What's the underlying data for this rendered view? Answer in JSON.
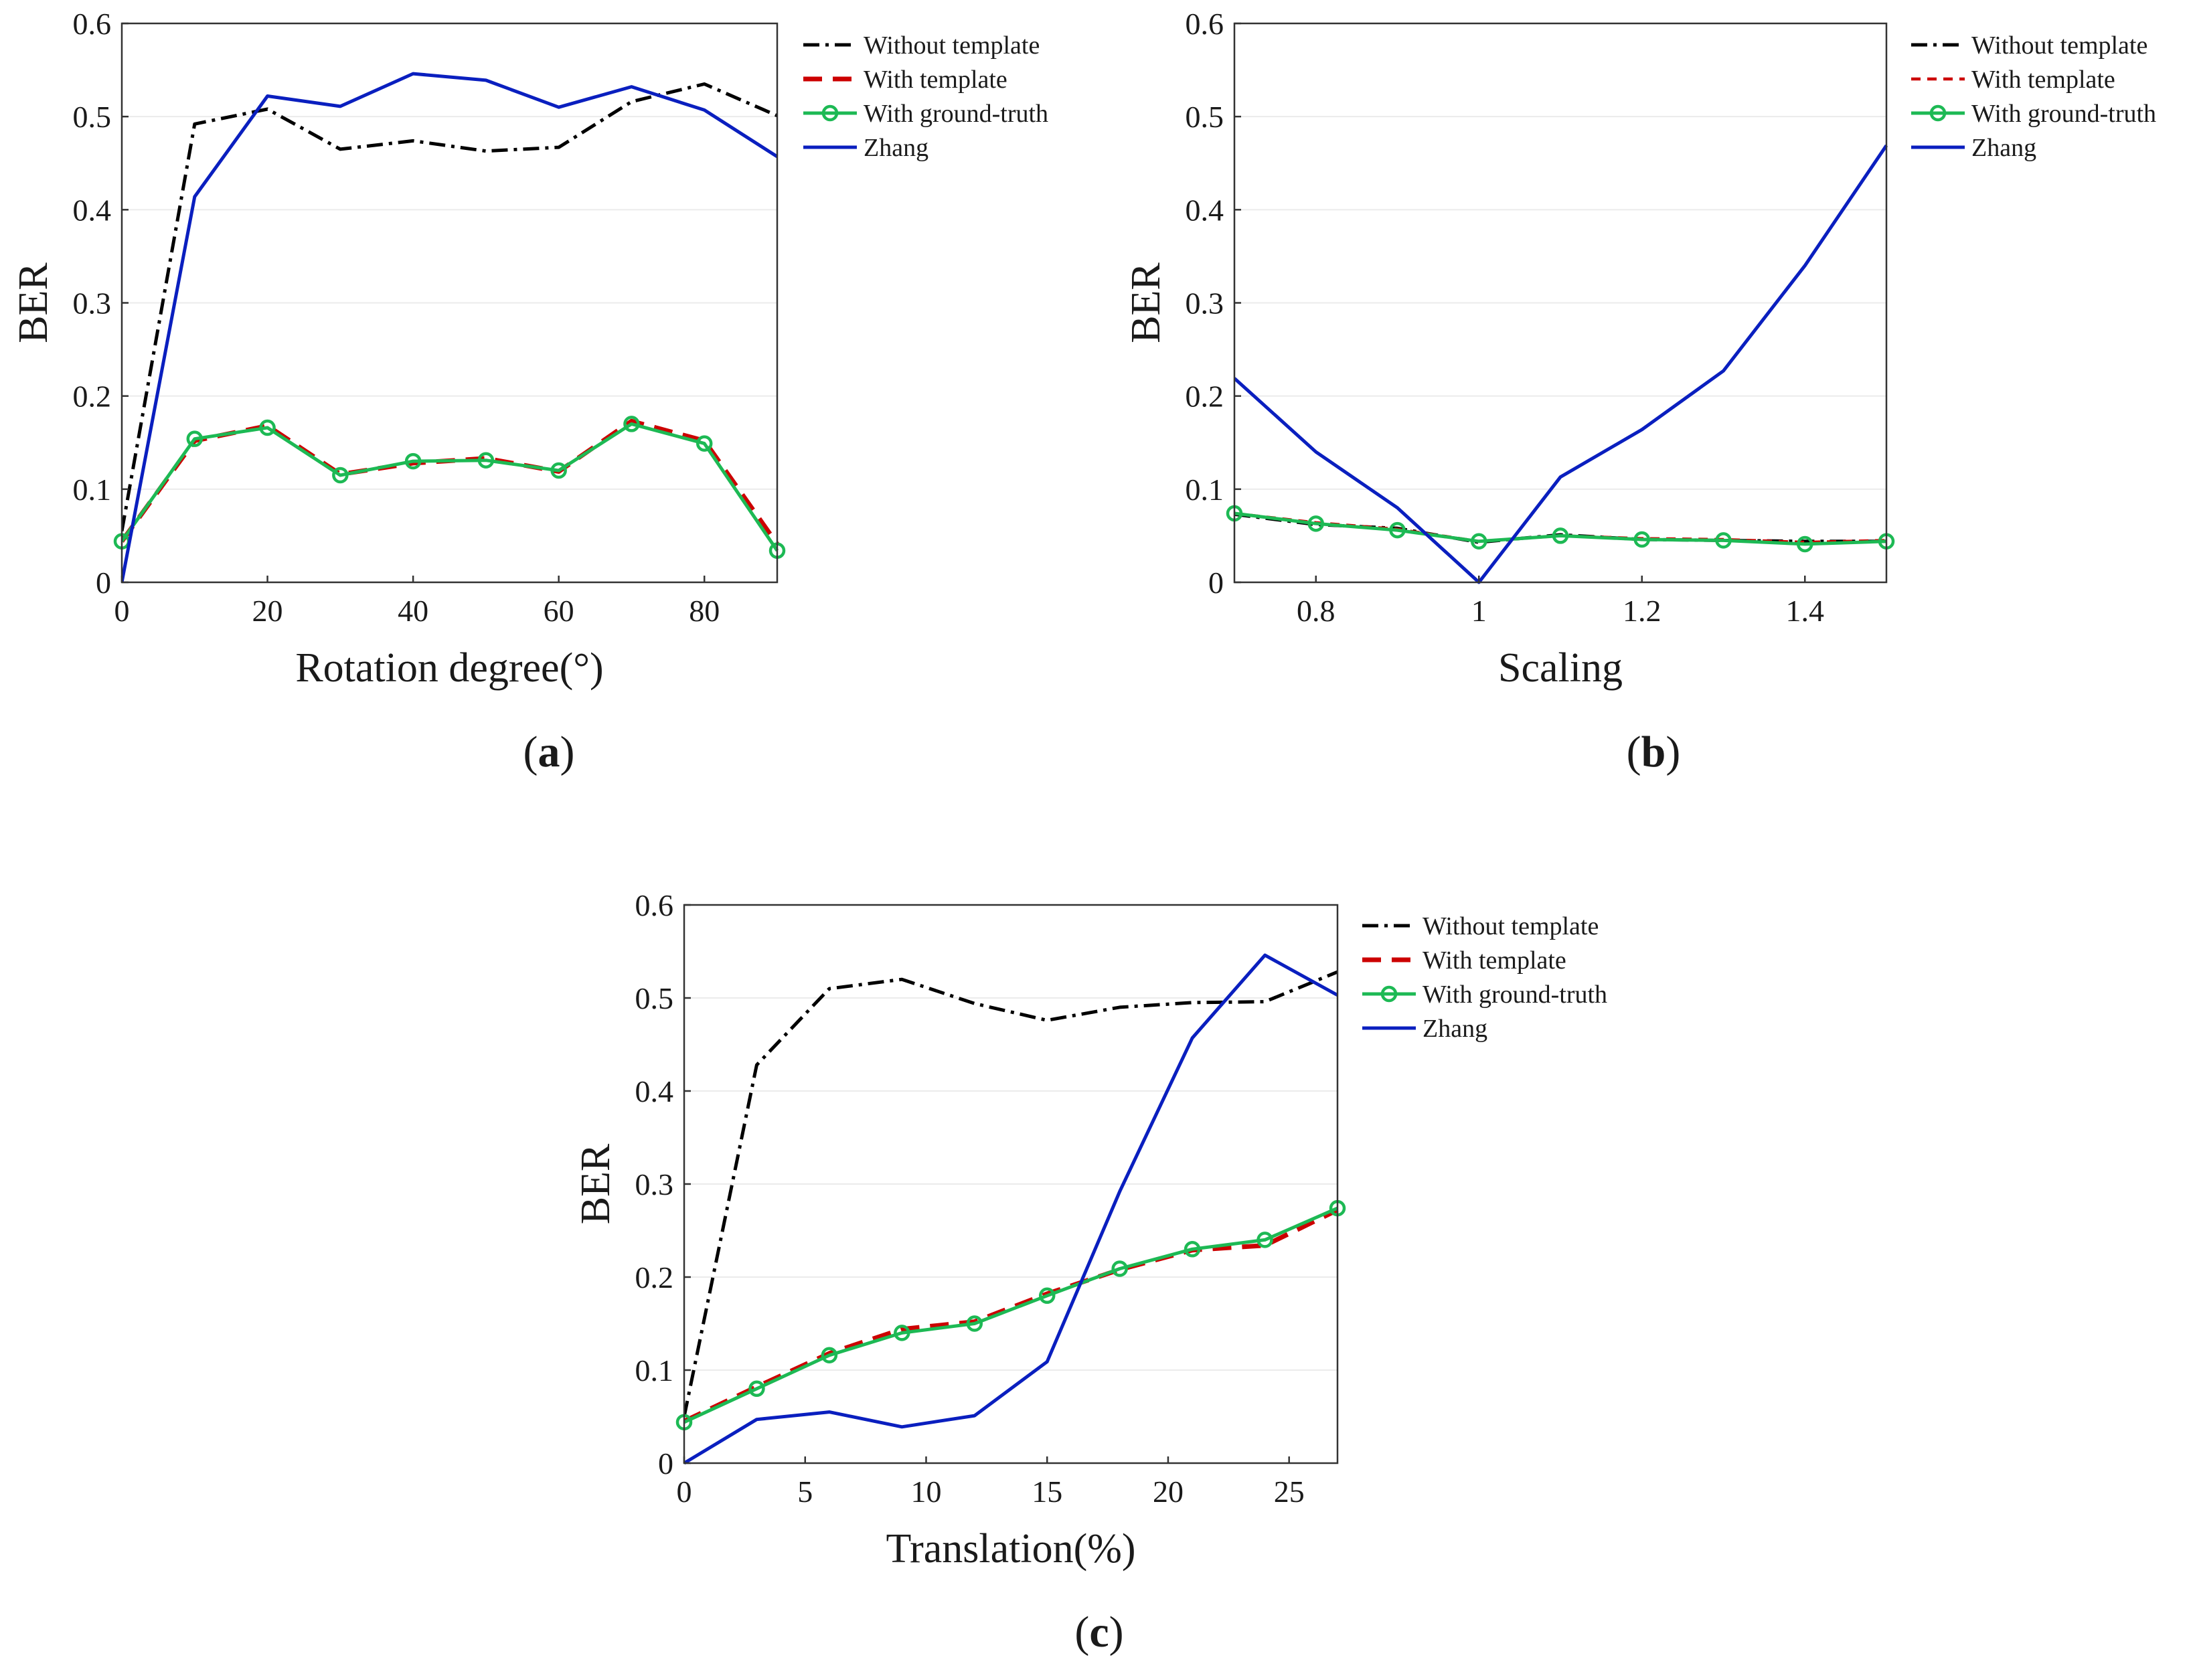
{
  "panels": [
    {
      "label": "a",
      "chart_data": {
        "type": "line",
        "xlabel": "Rotation degree(°)",
        "ylabel": "BER",
        "xlim": [
          0,
          90
        ],
        "ylim": [
          0,
          0.6
        ],
        "xticks": [
          0,
          20,
          40,
          60,
          80
        ],
        "yticks": [
          0,
          0.1,
          0.2,
          0.3,
          0.4,
          0.5,
          0.6
        ],
        "grid": "horizontal",
        "legend": "top-right-outside",
        "x": [
          0,
          10,
          20,
          30,
          40,
          50,
          60,
          70,
          80,
          90
        ],
        "series": [
          {
            "name": "Without template",
            "style": "dashdot",
            "color": "#000000",
            "values": [
              0.055,
              0.492,
              0.508,
              0.465,
              0.474,
              0.463,
              0.467,
              0.516,
              0.535,
              0.501
            ]
          },
          {
            "name": "With template",
            "style": "dashed",
            "color": "#cc0000",
            "values": [
              0.044,
              0.152,
              0.168,
              0.116,
              0.128,
              0.133,
              0.119,
              0.173,
              0.152,
              0.041
            ]
          },
          {
            "name": "With ground-truth",
            "style": "solid-marker",
            "color": "#1db954",
            "values": [
              0.044,
              0.154,
              0.166,
              0.115,
              0.13,
              0.131,
              0.12,
              0.17,
              0.149,
              0.034
            ]
          },
          {
            "name": "Zhang",
            "style": "solid",
            "color": "#0a1fbf",
            "values": [
              0.0,
              0.414,
              0.522,
              0.511,
              0.546,
              0.539,
              0.51,
              0.532,
              0.507,
              0.457
            ]
          }
        ]
      }
    },
    {
      "label": "b",
      "chart_data": {
        "type": "line",
        "xlabel": "Scaling",
        "ylabel": "BER",
        "xlim": [
          0.7,
          1.5
        ],
        "ylim": [
          0,
          0.6
        ],
        "xticks": [
          0.8,
          1,
          1.2,
          1.4
        ],
        "yticks": [
          0,
          0.1,
          0.2,
          0.3,
          0.4,
          0.5,
          0.6
        ],
        "grid": "horizontal",
        "legend": "top-right-outside",
        "x": [
          0.7,
          0.8,
          0.9,
          1.0,
          1.1,
          1.2,
          1.3,
          1.4,
          1.5
        ],
        "series": [
          {
            "name": "Without template",
            "style": "dashdot",
            "color": "#000000",
            "values": [
              0.073,
              0.062,
              0.058,
              0.043,
              0.051,
              0.046,
              0.045,
              0.044,
              0.044
            ]
          },
          {
            "name": "With template",
            "style": "dotted",
            "color": "#cc0000",
            "values": [
              0.074,
              0.064,
              0.057,
              0.044,
              0.05,
              0.047,
              0.046,
              0.043,
              0.045
            ]
          },
          {
            "name": "With ground-truth",
            "style": "solid-marker",
            "color": "#1db954",
            "values": [
              0.074,
              0.063,
              0.056,
              0.044,
              0.05,
              0.046,
              0.045,
              0.041,
              0.044
            ]
          },
          {
            "name": "Zhang",
            "style": "solid",
            "color": "#0a1fbf",
            "values": [
              0.219,
              0.14,
              0.08,
              0.0,
              0.113,
              0.164,
              0.227,
              0.34,
              0.469
            ]
          }
        ]
      }
    },
    {
      "label": "c",
      "chart_data": {
        "type": "line",
        "xlabel": "Translation(%)",
        "ylabel": "BER",
        "xlim": [
          0,
          27
        ],
        "ylim": [
          0,
          0.6
        ],
        "xticks": [
          0,
          5,
          10,
          15,
          20,
          25
        ],
        "yticks": [
          0,
          0.1,
          0.2,
          0.3,
          0.4,
          0.5,
          0.6
        ],
        "grid": "horizontal",
        "legend": "top-right-outside",
        "x": [
          0,
          3,
          6,
          9,
          12,
          15,
          18,
          21,
          24,
          27
        ],
        "series": [
          {
            "name": "Without template",
            "style": "dashdot",
            "color": "#000000",
            "values": [
              0.05,
              0.428,
              0.51,
              0.52,
              0.494,
              0.476,
              0.49,
              0.495,
              0.496,
              0.528
            ]
          },
          {
            "name": "With template",
            "style": "dashed",
            "color": "#cc0000",
            "values": [
              0.045,
              0.082,
              0.118,
              0.144,
              0.152,
              0.182,
              0.208,
              0.229,
              0.234,
              0.272
            ]
          },
          {
            "name": "With ground-truth",
            "style": "solid-marker",
            "color": "#1db954",
            "values": [
              0.044,
              0.08,
              0.116,
              0.14,
              0.15,
              0.18,
              0.209,
              0.23,
              0.24,
              0.274
            ]
          },
          {
            "name": "Zhang",
            "style": "solid",
            "color": "#0a1fbf",
            "values": [
              0.0,
              0.047,
              0.055,
              0.039,
              0.051,
              0.109,
              0.292,
              0.457,
              0.546,
              0.503
            ]
          }
        ]
      }
    }
  ]
}
